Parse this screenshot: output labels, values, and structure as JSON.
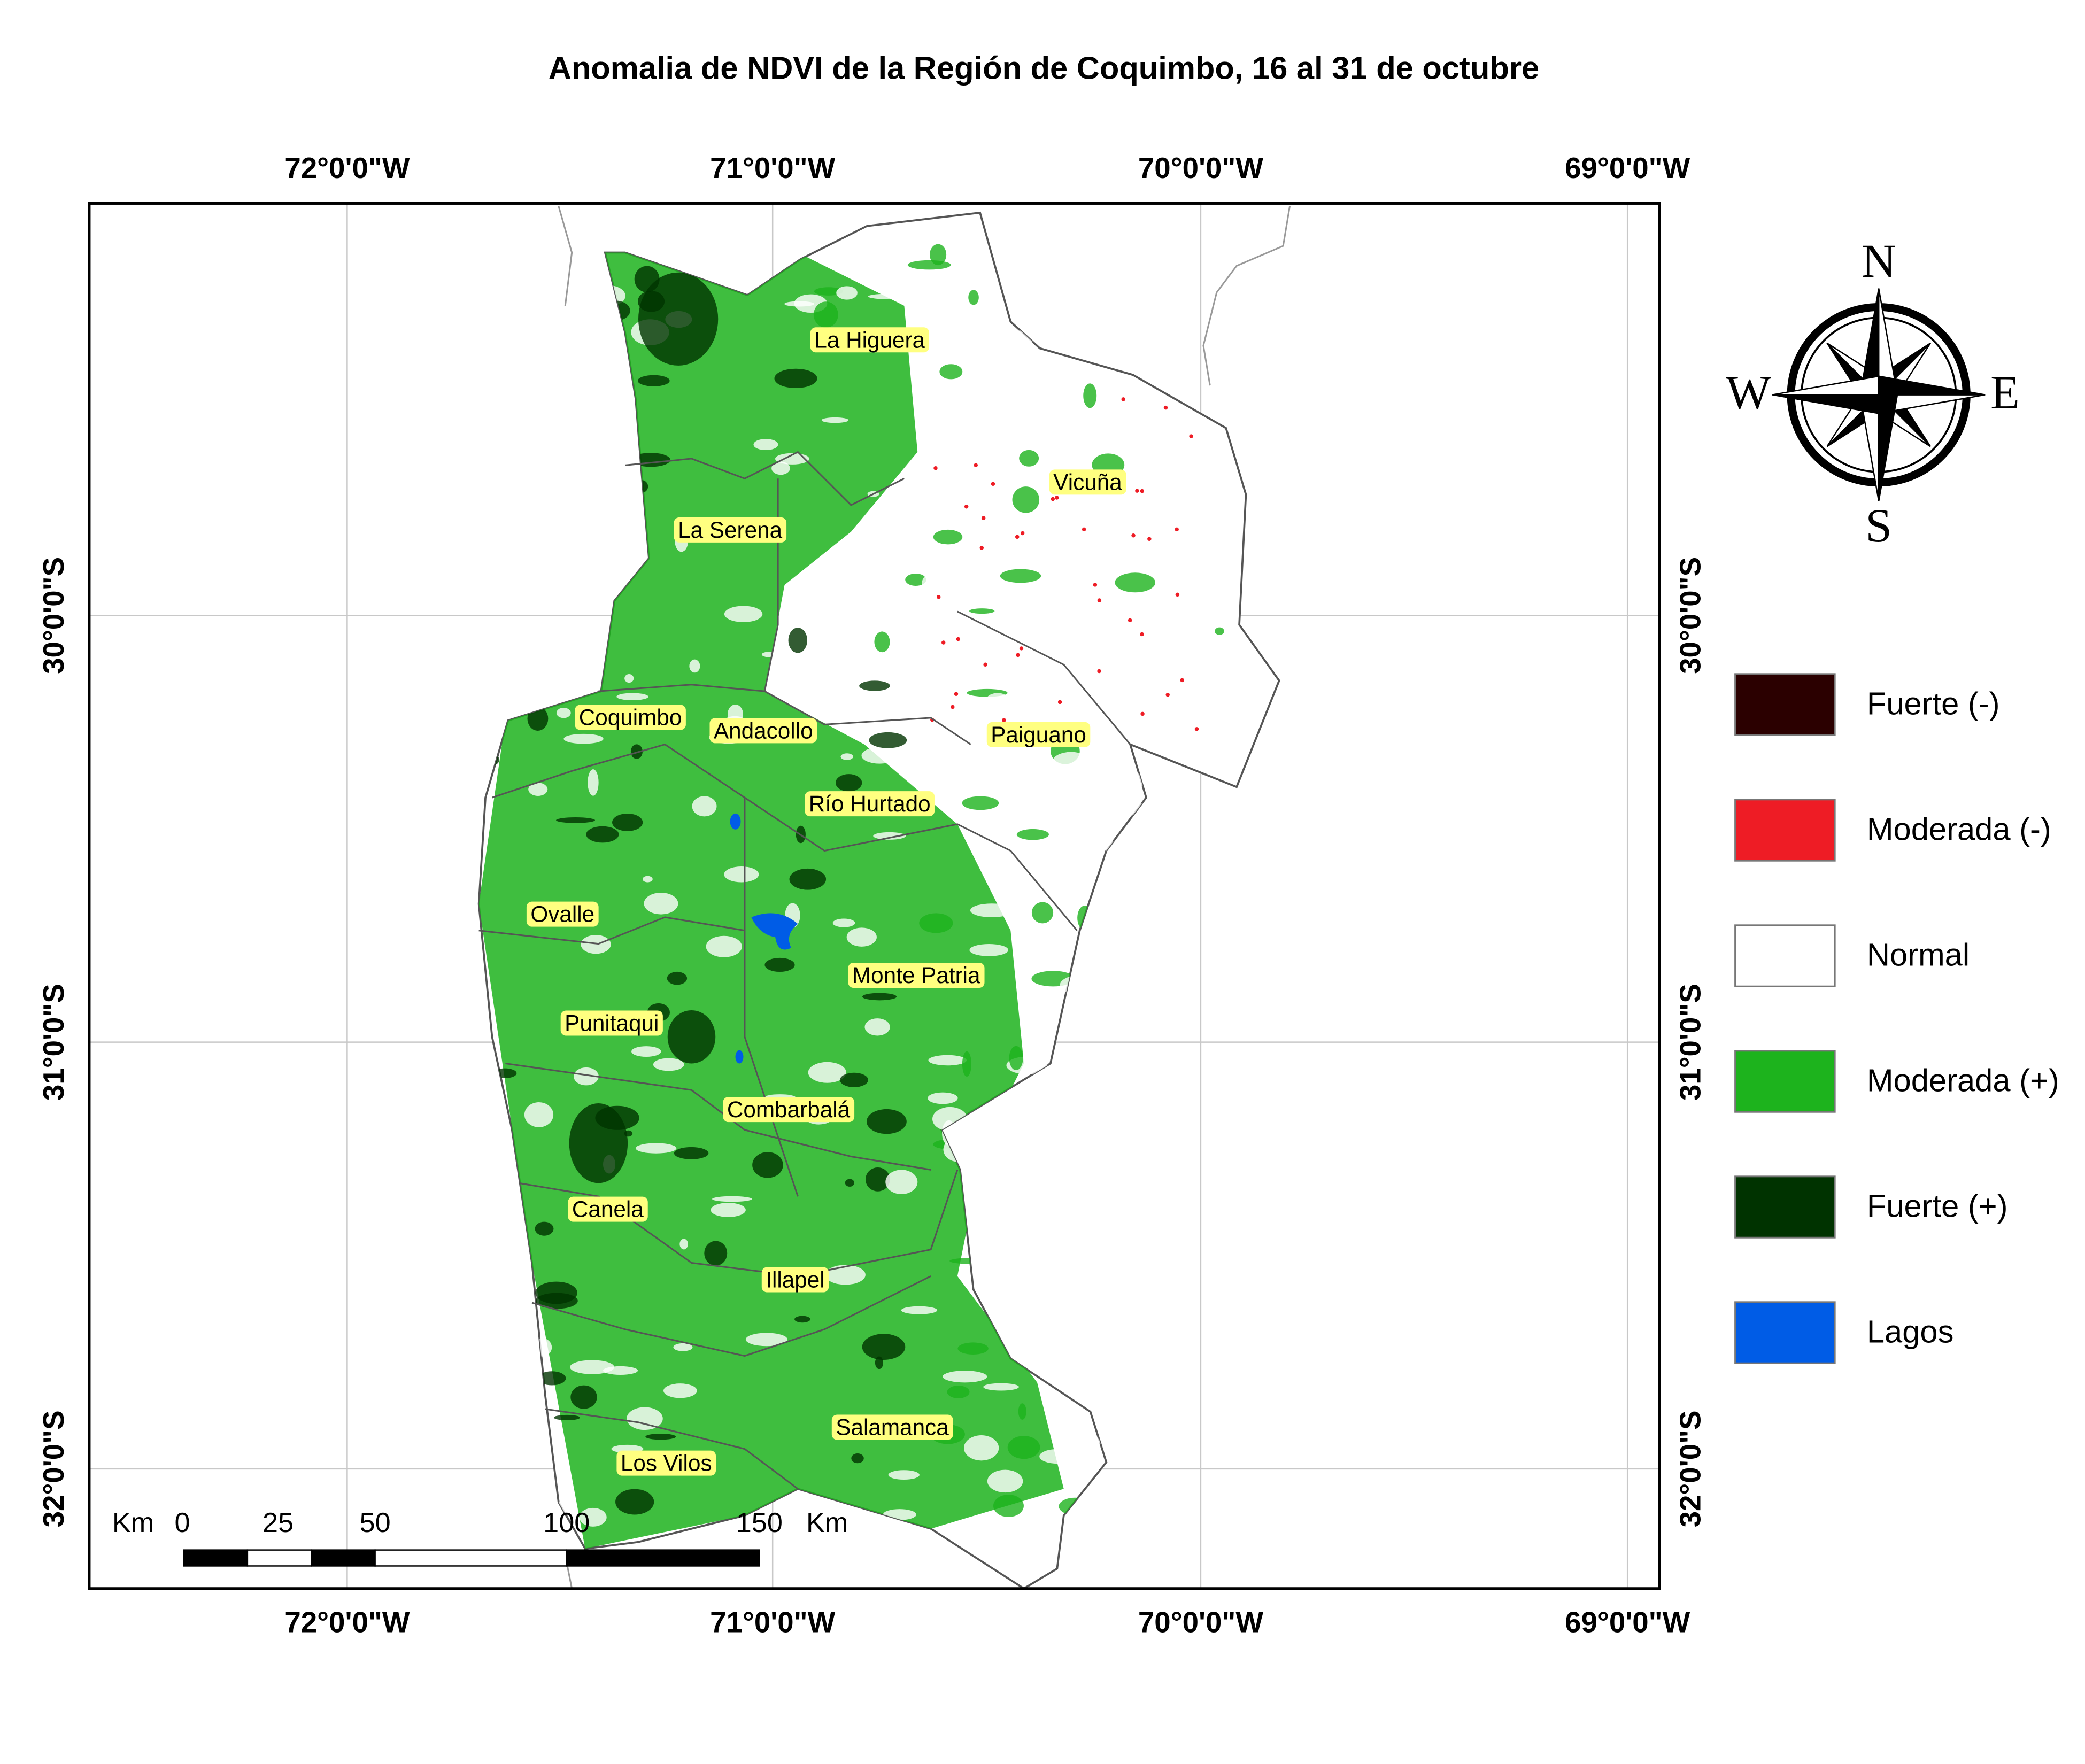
{
  "title": "Anomalia de NDVI de la Región de Coquimbo, 16 al 31 de octubre",
  "graticule": {
    "longitudes": [
      "72°0'0\"W",
      "71°0'0\"W",
      "70°0'0\"W",
      "69°0'0\"W"
    ],
    "latitudes": [
      "30°0'0\"S",
      "31°0'0\"S",
      "32°0'0\"S"
    ]
  },
  "communes": [
    {
      "label": "La Higuera"
    },
    {
      "label": "Vicuña"
    },
    {
      "label": "La Serena"
    },
    {
      "label": "Coquimbo"
    },
    {
      "label": "Andacollo"
    },
    {
      "label": "Paiguano"
    },
    {
      "label": "Río Hurtado"
    },
    {
      "label": "Ovalle"
    },
    {
      "label": "Monte Patria"
    },
    {
      "label": "Punitaqui"
    },
    {
      "label": "Combarbalá"
    },
    {
      "label": "Canela"
    },
    {
      "label": "Illapel"
    },
    {
      "label": "Salamanca"
    },
    {
      "label": "Los Vilos"
    }
  ],
  "compass": {
    "north": "N",
    "south": "S",
    "east": "E",
    "west": "W"
  },
  "scale_bar": {
    "unit": "Km",
    "ticks": [
      "0",
      "25",
      "50",
      "100",
      "150"
    ]
  },
  "legend": [
    {
      "label": "Fuerte (-)",
      "color": "#2b0000"
    },
    {
      "label": "Moderada (-)",
      "color": "#ee1c25"
    },
    {
      "label": "Normal",
      "color": "#ffffff"
    },
    {
      "label": "Moderada (+)",
      "color": "#1db31d"
    },
    {
      "label": "Fuerte (+)",
      "color": "#003300"
    },
    {
      "label": "Lagos",
      "color": "#005ce6"
    }
  ]
}
